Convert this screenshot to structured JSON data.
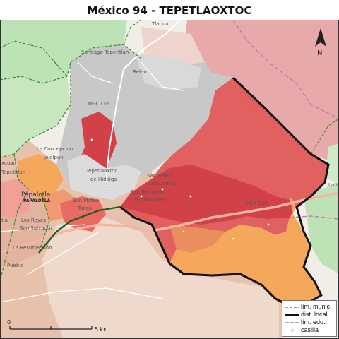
{
  "title": "México 94 - TEPETLAOXTOC",
  "colors": {
    "district": "#e05555",
    "section_dark": "#d24148",
    "section_orange": "#f5a85c",
    "neighbor_pink": "#e7a9a9",
    "neighbor_gray": "#c8c8c8",
    "urban": "#e8c1ad",
    "green": "#bde2b6"
  },
  "places": {
    "tlatica": "Tlatica",
    "santiago": "Santiago Tepetitlan",
    "belen": "Belen",
    "mex136_north": "MEX 136",
    "concepcion_1": "La Concepcion",
    "concepcion_2": "Jolalpan",
    "tepetlaoxtoc_1": "Tepetlaoxtoc",
    "tepetlaoxtoc_2": "de Hidalgo",
    "sanpedro_1": "San Pedro",
    "sanpedro_2": "Chiautzingo",
    "sanbernardo_1": "San Bernardo",
    "sanbernardo_2": "Tlalmimilolpan",
    "mex136_east": "MEX 136",
    "la_v": "La V",
    "papalotla": "Papalotla",
    "papalotla_caps": "PAPALOTLA",
    "tepetitlan": "Tepetitlan",
    "ixcuan": "xcuan",
    "tla": "tla",
    "san_mateo": "San Mateo",
    "tonco": "Tonco",
    "los_reyes": "Los Reyes",
    "san_salvador": "San Salvador",
    "resurreccion": "La Resurrección",
    "pueblo": "Pueblo"
  },
  "scale": {
    "zero": "0",
    "label": "5 km"
  },
  "legend": {
    "municipal": "lím. munic.",
    "district": "dist. local",
    "state": "lím. edo.",
    "polling": "casilla"
  },
  "north_label": "N"
}
